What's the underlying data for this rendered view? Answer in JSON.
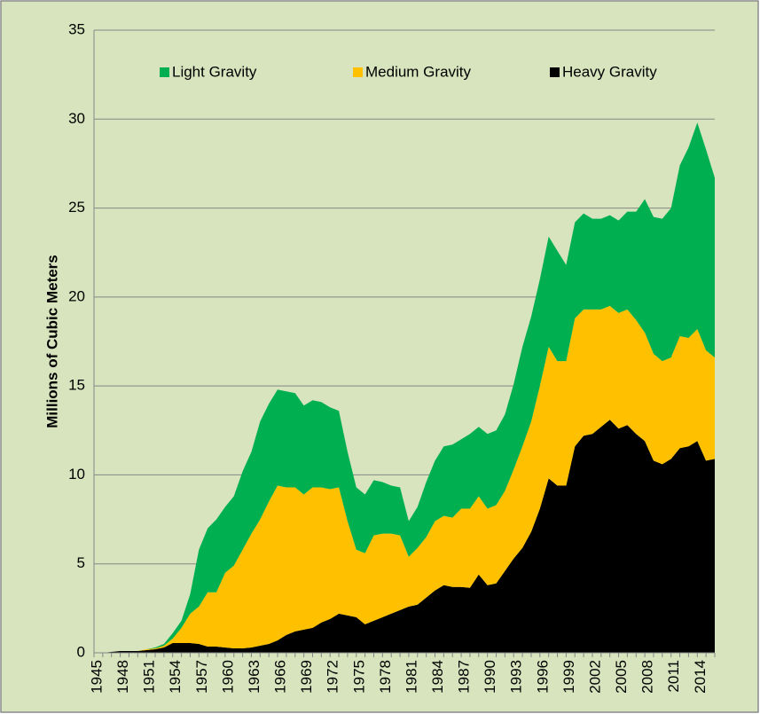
{
  "chart_data": {
    "type": "stacked_area",
    "y_label": "Millions of Cubic Meters",
    "categories": [
      "1945",
      null,
      null,
      "1948",
      null,
      null,
      "1951",
      null,
      null,
      "1954",
      null,
      null,
      "1957",
      null,
      null,
      "1960",
      null,
      null,
      "1963",
      null,
      null,
      "1966",
      null,
      null,
      "1969",
      null,
      null,
      "1972",
      null,
      null,
      "1975",
      null,
      null,
      "1978",
      null,
      null,
      "1981",
      null,
      null,
      "1984",
      null,
      null,
      "1987",
      null,
      null,
      "1990",
      null,
      null,
      "1993",
      null,
      null,
      "1996",
      null,
      null,
      "1999",
      null,
      null,
      "2002",
      null,
      null,
      "2005",
      null,
      null,
      "2008",
      null,
      null,
      "2011",
      null,
      null,
      "2014",
      null,
      null
    ],
    "series": [
      {
        "name": "Light Gravity",
        "color": "#00b050",
        "values": [
          0,
          0,
          0,
          0,
          0,
          0,
          0,
          0.05,
          0.1,
          0.3,
          0.4,
          1.1,
          3.2,
          3.6,
          4.1,
          3.7,
          3.9,
          4.4,
          4.6,
          5.5,
          5.5,
          5.4,
          5.4,
          5.3,
          5.0,
          4.9,
          4.8,
          4.6,
          4.3,
          3.9,
          3.5,
          3.3,
          3.1,
          2.9,
          2.7,
          2.7,
          2.0,
          2.3,
          3.1,
          3.4,
          3.9,
          4.1,
          3.9,
          4.2,
          3.9,
          4.2,
          4.2,
          4.3,
          4.8,
          5.6,
          5.9,
          6.0,
          6.2,
          6.2,
          5.4,
          5.4,
          5.4,
          5.1,
          5.1,
          5.1,
          5.2,
          5.5,
          6.1,
          7.5,
          7.7,
          8.0,
          8.4,
          9.6,
          10.7,
          11.6,
          11.3,
          10.1
        ]
      },
      {
        "name": "Medium Gravity",
        "color": "#ffc000",
        "values": [
          0,
          0,
          0,
          0,
          0,
          0,
          0.05,
          0.05,
          0.1,
          0.25,
          0.85,
          1.65,
          2.1,
          3.05,
          3.05,
          4.2,
          4.65,
          5.55,
          6.4,
          7.1,
          8.0,
          8.7,
          8.3,
          8.1,
          7.6,
          7.9,
          7.6,
          7.3,
          7.1,
          5.3,
          3.8,
          4.0,
          4.8,
          4.7,
          4.5,
          4.2,
          2.8,
          3.2,
          3.4,
          3.9,
          3.9,
          3.9,
          4.4,
          4.45,
          4.4,
          4.3,
          4.4,
          4.5,
          5.0,
          5.7,
          6.2,
          6.9,
          7.4,
          7.0,
          7.0,
          7.2,
          7.1,
          7.0,
          6.6,
          6.4,
          6.5,
          6.5,
          6.4,
          6.1,
          6.0,
          5.8,
          5.7,
          6.3,
          6.1,
          6.3,
          6.2,
          5.7
        ]
      },
      {
        "name": "Heavy Gravity",
        "color": "#000000",
        "values": [
          0,
          0,
          0.05,
          0.1,
          0.1,
          0.1,
          0.15,
          0.2,
          0.3,
          0.55,
          0.55,
          0.55,
          0.5,
          0.35,
          0.35,
          0.3,
          0.25,
          0.25,
          0.3,
          0.4,
          0.5,
          0.7,
          1.0,
          1.2,
          1.3,
          1.4,
          1.7,
          1.9,
          2.2,
          2.1,
          2.0,
          1.6,
          1.8,
          2.0,
          2.2,
          2.4,
          2.6,
          2.7,
          3.1,
          3.5,
          3.8,
          3.7,
          3.7,
          3.65,
          4.4,
          3.8,
          3.9,
          4.6,
          5.3,
          5.9,
          6.8,
          8.1,
          9.8,
          9.4,
          9.4,
          11.6,
          12.2,
          12.3,
          12.7,
          13.1,
          12.6,
          12.8,
          12.3,
          11.9,
          10.8,
          10.6,
          10.9,
          11.5,
          11.6,
          11.9,
          10.8,
          10.9
        ]
      }
    ],
    "ylim": [
      0,
      35
    ],
    "yticks": [
      0,
      5,
      10,
      15,
      20,
      25,
      30,
      35
    ],
    "grid": true,
    "legend": "top"
  }
}
